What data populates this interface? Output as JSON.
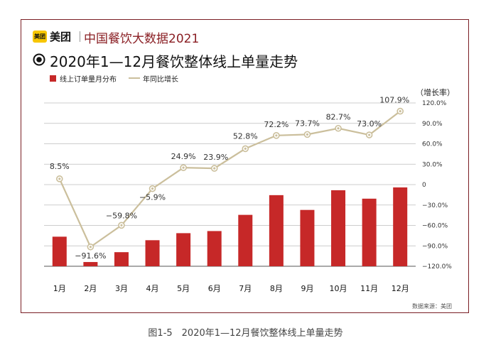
{
  "header": {
    "logo_text": "美团",
    "brand_name": "美团",
    "report_title": "中国餐饮大数据2021"
  },
  "chart_title": "2020年1—12月餐饮整体线上单量走势",
  "legend": {
    "bar_label": "线上订单量月分布",
    "line_label": "年同比增长"
  },
  "y2_axis_title": "（增长率）",
  "source_note": "数据来源：美团",
  "caption": "图1-5　2020年1—12月餐饮整体线上单量走势",
  "colors": {
    "bar": "#c62828",
    "line": "#cbbf9c",
    "frame": "#7a1e24",
    "title": "#8a1f24"
  },
  "chart_data": {
    "type": "bar",
    "title": "2020年1—12月餐饮整体线上单量走势",
    "categories": [
      "1月",
      "2月",
      "3月",
      "4月",
      "5月",
      "6月",
      "7月",
      "8月",
      "9月",
      "10月",
      "11月",
      "12月"
    ],
    "series": [
      {
        "name": "线上订单量月分布",
        "type": "bar",
        "values": [
          42,
          6,
          20,
          37,
          47,
          50,
          73,
          101,
          80,
          108,
          96,
          112
        ]
      },
      {
        "name": "年同比增长",
        "type": "line",
        "axis": "right",
        "values": [
          8.5,
          -91.6,
          -59.8,
          -5.9,
          24.9,
          23.9,
          52.8,
          72.2,
          73.7,
          82.7,
          73.0,
          107.9
        ],
        "labels": [
          "8.5%",
          "−91.6%",
          "−59.8%",
          "−5.9%",
          "24.9%",
          "23.9%",
          "52.8%",
          "72.2%",
          "73.7%",
          "82.7%",
          "73.0%",
          "107.9%"
        ]
      }
    ],
    "y2_ticks": [
      "120.0%",
      "90.0%",
      "60.0%",
      "30.0%",
      "0",
      "−30.0%",
      "−60.0%",
      "−90.0%",
      "−120.0%"
    ],
    "y2_tick_values": [
      120,
      90,
      60,
      30,
      0,
      -30,
      -60,
      -90,
      -120
    ],
    "ylim_right": [
      -120,
      120
    ],
    "grid": true
  }
}
